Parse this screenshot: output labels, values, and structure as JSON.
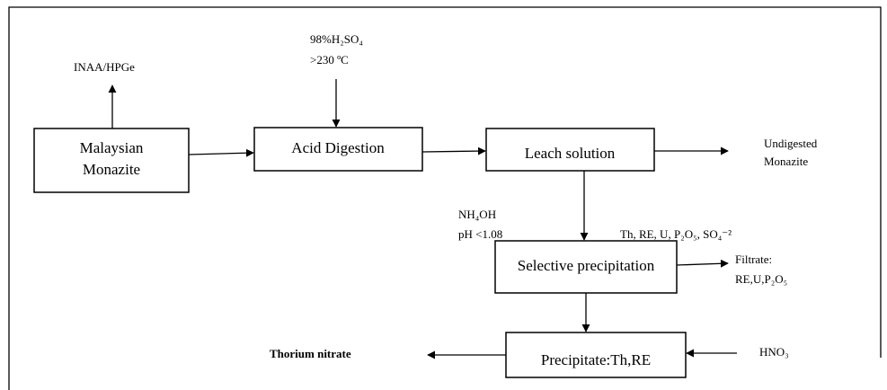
{
  "nodes": [
    {
      "label": [
        "Malaysian",
        "Monazite"
      ]
    },
    {
      "label": [
        "Acid Digestion"
      ]
    },
    {
      "label": [
        "Leach solution"
      ]
    },
    {
      "label": [
        "Selective precipitation"
      ]
    },
    {
      "label": [
        "Precipitate:Th,RE"
      ]
    }
  ],
  "annotations": [
    {
      "label": [
        "INAA/HPGe"
      ]
    },
    {
      "label": [
        "98%H₂SO₄",
        ">230 ºC"
      ]
    },
    {
      "label": [
        "Undigested",
        "Monazite"
      ]
    },
    {
      "label": [
        "NH₄OH",
        "pH <1.08"
      ]
    },
    {
      "label": [
        "Th, RE, U, P₂O₅, SO₄⁻²"
      ]
    },
    {
      "label": [
        "Filtrate:",
        "RE,U,P₂O₅"
      ]
    },
    {
      "label": [
        "Thorium nitrate"
      ]
    },
    {
      "label": [
        "HNO₃"
      ]
    }
  ]
}
